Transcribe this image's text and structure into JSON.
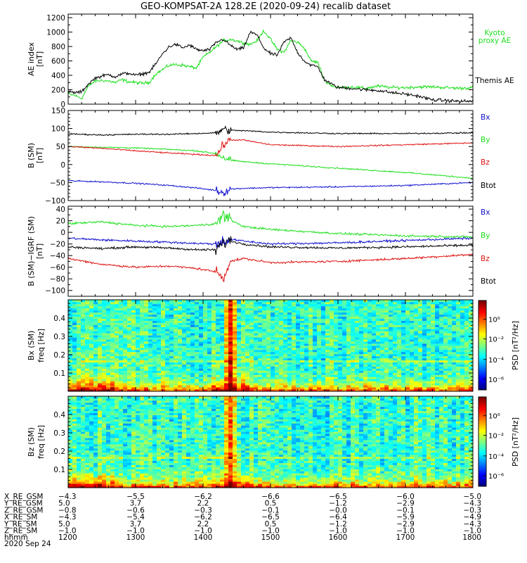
{
  "title": "GEO-KOMPSAT-2A 128.2E (2020-09-24) recalib dataset",
  "colors": {
    "black": "#000000",
    "green": "#1ee01e",
    "red": "#e01414",
    "blue": "#1010d0",
    "bg": "#ffffff"
  },
  "chart_data": [
    {
      "type": "line",
      "panel": "ae",
      "ylabel": "AE index",
      "yunit": "[nT]",
      "ylim": [
        0,
        1250
      ],
      "yticks": [
        "0",
        "200",
        "400",
        "600",
        "800",
        "1000",
        "1200"
      ],
      "series": [
        {
          "name": "Kyoto proxy AE",
          "color": "green",
          "x": [
            1200,
            1210,
            1220,
            1230,
            1240,
            1250,
            1260,
            1270,
            1280,
            1290,
            1300,
            1310,
            1320,
            1330,
            1340,
            1350,
            1360,
            1370,
            1380,
            1390,
            1400,
            1410,
            1420,
            1430,
            1440,
            1450,
            1460,
            1470,
            1480,
            1490,
            1500,
            1510,
            1520,
            1530,
            1540,
            1550,
            1560,
            1570,
            1580,
            1590,
            1600,
            1620,
            1640,
            1660,
            1680,
            1700,
            1720,
            1740,
            1760,
            1780,
            1800
          ],
          "y": [
            140,
            120,
            80,
            250,
            320,
            330,
            320,
            300,
            340,
            310,
            300,
            290,
            300,
            420,
            480,
            540,
            550,
            540,
            520,
            500,
            650,
            720,
            800,
            880,
            900,
            880,
            850,
            830,
            880,
            1020,
            900,
            760,
            720,
            880,
            860,
            780,
            600,
            580,
            330,
            260,
            230,
            240,
            220,
            250,
            230,
            230,
            240,
            240,
            230,
            220,
            230
          ]
        },
        {
          "name": "Themis AE",
          "color": "black",
          "x": [
            1200,
            1210,
            1220,
            1230,
            1240,
            1250,
            1260,
            1270,
            1280,
            1290,
            1300,
            1310,
            1320,
            1330,
            1340,
            1350,
            1360,
            1370,
            1380,
            1390,
            1400,
            1410,
            1420,
            1430,
            1440,
            1450,
            1460,
            1470,
            1480,
            1490,
            1500,
            1510,
            1520,
            1530,
            1540,
            1550,
            1560,
            1570,
            1580,
            1590,
            1600,
            1620,
            1640,
            1660,
            1680,
            1700,
            1720,
            1740,
            1760,
            1780,
            1800
          ],
          "y": [
            170,
            160,
            170,
            280,
            360,
            390,
            410,
            380,
            420,
            430,
            400,
            420,
            440,
            560,
            700,
            800,
            830,
            780,
            820,
            760,
            740,
            760,
            860,
            900,
            820,
            760,
            780,
            1000,
            960,
            780,
            700,
            680,
            860,
            920,
            720,
            600,
            540,
            520,
            340,
            280,
            230,
            220,
            200,
            190,
            160,
            140,
            110,
            60,
            50,
            40,
            40
          ]
        }
      ]
    },
    {
      "type": "line",
      "panel": "b",
      "ylabel": "B (SM)",
      "yunit": "[nT]",
      "ylim": [
        -100,
        150
      ],
      "yticks": [
        "−100",
        "−50",
        "0",
        "50",
        "100",
        "150"
      ],
      "series": [
        {
          "name": "Bx",
          "color": "blue",
          "x": [
            1200,
            1250,
            1300,
            1350,
            1390,
            1420,
            1430,
            1440,
            1460,
            1500,
            1600,
            1700,
            1800
          ],
          "y": [
            -45,
            -48,
            -52,
            -58,
            -65,
            -72,
            -78,
            -68,
            -66,
            -64,
            -62,
            -58,
            -50
          ]
        },
        {
          "name": "By",
          "color": "green",
          "x": [
            1200,
            1250,
            1300,
            1350,
            1390,
            1420,
            1430,
            1440,
            1460,
            1500,
            1600,
            1700,
            1800
          ],
          "y": [
            50,
            48,
            46,
            42,
            38,
            30,
            20,
            12,
            8,
            2,
            -10,
            -22,
            -38
          ]
        },
        {
          "name": "Bz",
          "color": "red",
          "x": [
            1200,
            1250,
            1300,
            1350,
            1390,
            1420,
            1430,
            1440,
            1460,
            1500,
            1600,
            1700,
            1800
          ],
          "y": [
            50,
            45,
            38,
            32,
            28,
            25,
            55,
            68,
            68,
            55,
            50,
            55,
            60
          ]
        },
        {
          "name": "Btot",
          "color": "black",
          "x": [
            1200,
            1250,
            1300,
            1350,
            1390,
            1420,
            1430,
            1440,
            1460,
            1500,
            1600,
            1700,
            1800
          ],
          "y": [
            85,
            82,
            84,
            84,
            86,
            88,
            98,
            95,
            94,
            90,
            86,
            86,
            88
          ]
        }
      ]
    },
    {
      "type": "line",
      "panel": "db",
      "ylabel": "B (SM)−IGRF (SM)",
      "yunit": "[nT]",
      "ylim": [
        -110,
        45
      ],
      "yticks": [
        "−100",
        "−80",
        "−60",
        "−40",
        "−20",
        "0",
        "20",
        "40"
      ],
      "series": [
        {
          "name": "Bx",
          "color": "blue",
          "x": [
            1200,
            1250,
            1300,
            1350,
            1390,
            1420,
            1430,
            1440,
            1460,
            1500,
            1600,
            1700,
            1800
          ],
          "y": [
            -10,
            -13,
            -15,
            -17,
            -19,
            -20,
            -15,
            -12,
            -15,
            -20,
            -18,
            -14,
            -10
          ]
        },
        {
          "name": "By",
          "color": "green",
          "x": [
            1200,
            1250,
            1300,
            1350,
            1390,
            1420,
            1430,
            1440,
            1460,
            1500,
            1600,
            1700,
            1800
          ],
          "y": [
            15,
            18,
            12,
            10,
            12,
            15,
            30,
            22,
            10,
            5,
            -2,
            -6,
            -8
          ]
        },
        {
          "name": "Bz",
          "color": "red",
          "x": [
            1200,
            1250,
            1300,
            1350,
            1390,
            1420,
            1430,
            1440,
            1460,
            1500,
            1600,
            1700,
            1800
          ],
          "y": [
            -45,
            -55,
            -60,
            -58,
            -62,
            -68,
            -78,
            -50,
            -45,
            -52,
            -50,
            -45,
            -38
          ]
        },
        {
          "name": "Btot",
          "color": "black",
          "x": [
            1200,
            1250,
            1300,
            1350,
            1390,
            1420,
            1430,
            1440,
            1460,
            1500,
            1600,
            1700,
            1800
          ],
          "y": [
            -25,
            -28,
            -25,
            -27,
            -30,
            -30,
            -18,
            -15,
            -20,
            -25,
            -27,
            -25,
            -22
          ]
        }
      ]
    },
    {
      "type": "heatmap",
      "panel": "specx",
      "ylabel": "Bx (SM)",
      "ylabel2": "freq [Hz]",
      "ylim": [
        0,
        0.5
      ],
      "yticks": [
        "0.1",
        "0.2",
        "0.3",
        "0.4"
      ],
      "colorbar": {
        "label": "PSD [nT²/Hz]",
        "ticks": [
          "10⁰",
          "10⁻²",
          "10⁻⁴",
          "10⁻⁶"
        ]
      },
      "event_time": 1440,
      "line_freq": 0.17
    },
    {
      "type": "heatmap",
      "panel": "specz",
      "ylabel": "Bz (SM)",
      "ylabel2": "freq [Hz]",
      "ylim": [
        0,
        0.5
      ],
      "yticks": [
        "0.1",
        "0.2",
        "0.3",
        "0.4"
      ],
      "colorbar": {
        "label": "PSD [nT²/Hz]",
        "ticks": [
          "10⁰",
          "10⁻²",
          "10⁻⁴",
          "10⁻⁶"
        ]
      },
      "event_time": 1440,
      "line_freq": 0.17
    }
  ],
  "legends": {
    "ae": [
      {
        "text": "Kyoto",
        "color": "green"
      },
      {
        "text": "proxy AE",
        "color": "green"
      },
      {
        "text": "Themis AE",
        "color": "black"
      }
    ],
    "b": [
      {
        "text": "Bx",
        "color": "blue"
      },
      {
        "text": "By",
        "color": "green"
      },
      {
        "text": "Bz",
        "color": "red"
      },
      {
        "text": "Btot",
        "color": "black"
      }
    ],
    "db": [
      {
        "text": "Bx",
        "color": "blue"
      },
      {
        "text": "By",
        "color": "green"
      },
      {
        "text": "Bz",
        "color": "red"
      },
      {
        "text": "Btot",
        "color": "black"
      }
    ]
  },
  "ephemeris": {
    "labels": [
      "X_RE_GSM",
      "Y_RE_GSM",
      "Z_RE_GSM",
      "X_RE_SM",
      "Y_RE_SM",
      "Z_RE_SM",
      "hhmm"
    ],
    "columns": [
      [
        "−4.3",
        "5.0",
        "−0.8",
        "−4.3",
        "5.0",
        "−1.0",
        "1200"
      ],
      [
        "−5.5",
        "3.7",
        "−0.6",
        "−5.4",
        "3.7",
        "−1.0",
        "1300"
      ],
      [
        "−6.2",
        "2.2",
        "−0.3",
        "−6.2",
        "2.2",
        "−1.0",
        "1400"
      ],
      [
        "−6.6",
        "0.5",
        "−0.1",
        "−6.5",
        "0.5",
        "−1.0",
        "1500"
      ],
      [
        "−6.5",
        "−1.2",
        "−0.0",
        "−6.4",
        "−1.2",
        "−1.0",
        "1600"
      ],
      [
        "−6.0",
        "−2.9",
        "−0.1",
        "−5.9",
        "−2.9",
        "−1.0",
        "1700"
      ],
      [
        "−5.0",
        "−4.3",
        "−0.3",
        "−4.9",
        "−4.3",
        "−1.0",
        "1800"
      ]
    ],
    "date": "2020 Sep 24"
  },
  "x_axis": {
    "range": [
      1200,
      1800
    ],
    "major": [
      1200,
      1300,
      1400,
      1500,
      1600,
      1700,
      1800
    ]
  }
}
